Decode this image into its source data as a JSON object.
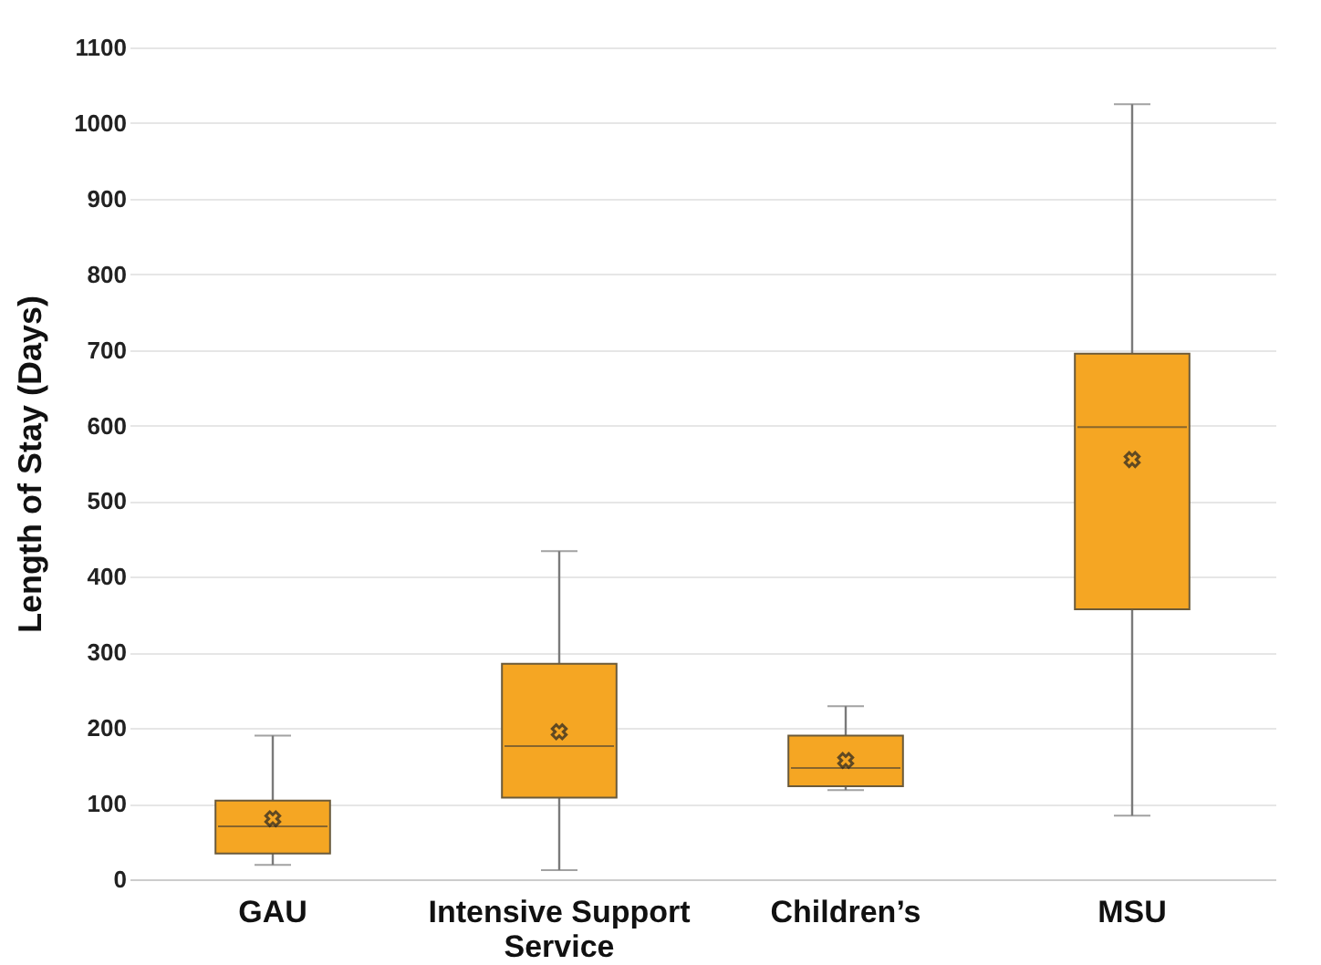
{
  "chart_data": {
    "type": "box",
    "ylabel": "Length of Stay (Days)",
    "categories": [
      "GAU",
      "Intensive Support Service",
      "Children’s",
      "MSU"
    ],
    "boxes": [
      {
        "low": 19,
        "q1": 34,
        "median": 70,
        "q3": 104,
        "high": 190,
        "mean": 80
      },
      {
        "low": 12,
        "q1": 108,
        "median": 176,
        "q3": 285,
        "high": 434,
        "mean": 195
      },
      {
        "low": 118,
        "q1": 123,
        "median": 147,
        "q3": 190,
        "high": 229,
        "mean": 157
      },
      {
        "low": 84,
        "q1": 357,
        "median": 598,
        "q3": 695,
        "high": 1025,
        "mean": 555
      }
    ],
    "color": "#f5a623",
    "ylim": [
      0,
      1100
    ],
    "yticks": [
      0,
      100,
      200,
      300,
      400,
      500,
      600,
      700,
      800,
      900,
      1000,
      1100
    ],
    "grid": "y",
    "marker": "cross"
  }
}
